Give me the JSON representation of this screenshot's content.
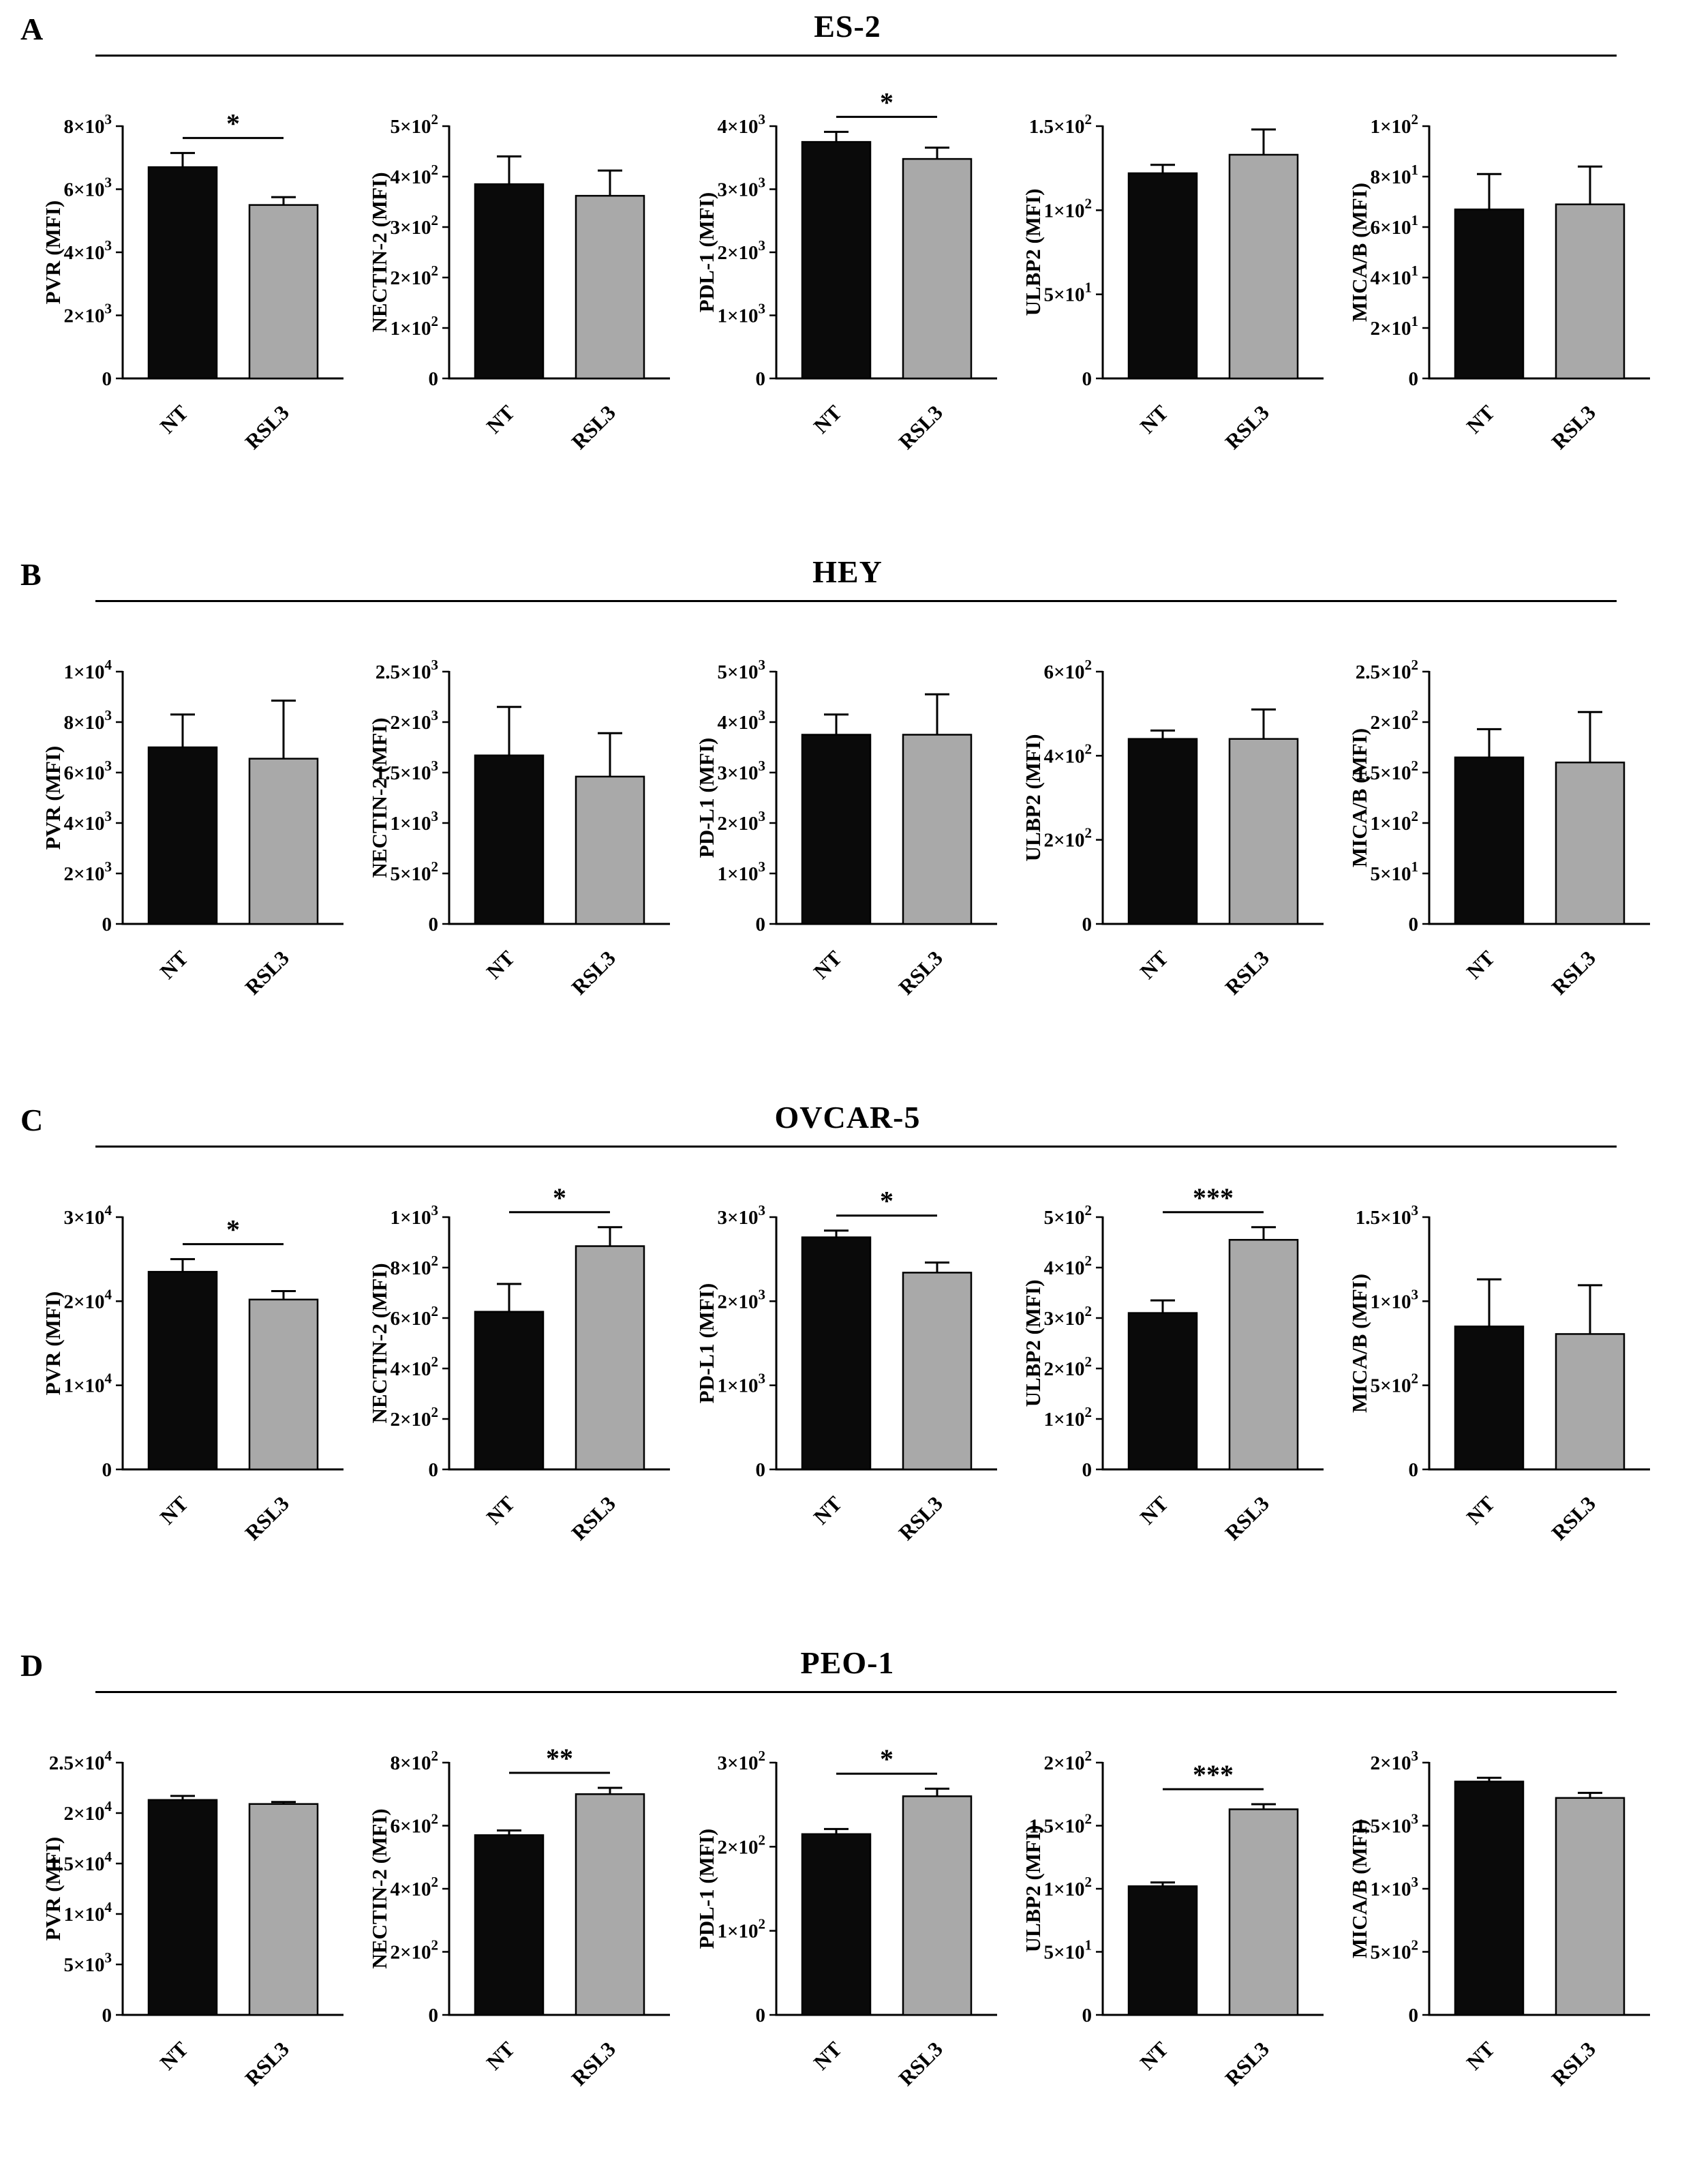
{
  "colors": {
    "nt_bar": "#0a0a0a",
    "rsl3_bar": "#a9a9a9",
    "axis": "#000000"
  },
  "chart_data": [
    {
      "panel": "A",
      "title": "ES-2",
      "charts": [
        {
          "type": "bar",
          "ylabel": "PVR (MFI)",
          "categories": [
            "NT",
            "RSL3"
          ],
          "values": [
            6700,
            5500
          ],
          "errors": [
            450,
            250
          ],
          "ymax": 8000,
          "yticks": [
            0,
            2000,
            4000,
            6000,
            8000
          ],
          "ytick_labels": [
            "0",
            "2×10^3",
            "4×10^3",
            "6×10^3",
            "8×10^3"
          ],
          "significance": "*"
        },
        {
          "type": "bar",
          "ylabel": "NECTIN-2 (MFI)",
          "categories": [
            "NT",
            "RSL3"
          ],
          "values": [
            385,
            362
          ],
          "errors": [
            55,
            50
          ],
          "ymax": 500,
          "yticks": [
            0,
            100,
            200,
            300,
            400,
            500
          ],
          "ytick_labels": [
            "0",
            "1×10^2",
            "2×10^2",
            "3×10^2",
            "4×10^2",
            "5×10^2"
          ],
          "significance": null
        },
        {
          "type": "bar",
          "ylabel": "PDL-1 (MFI)",
          "categories": [
            "NT",
            "RSL3"
          ],
          "values": [
            3750,
            3480
          ],
          "errors": [
            160,
            180
          ],
          "ymax": 4000,
          "yticks": [
            0,
            1000,
            2000,
            3000,
            4000
          ],
          "ytick_labels": [
            "0",
            "1×10^3",
            "2×10^3",
            "3×10^3",
            "4×10^3"
          ],
          "significance": "*"
        },
        {
          "type": "bar",
          "ylabel": "ULBP2 (MFI)",
          "categories": [
            "NT",
            "RSL3"
          ],
          "values": [
            122,
            133
          ],
          "errors": [
            5,
            15
          ],
          "ymax": 150,
          "yticks": [
            0,
            50,
            100,
            150
          ],
          "ytick_labels": [
            "0",
            "5×10^1",
            "1×10^2",
            "1.5×10^2"
          ],
          "significance": null
        },
        {
          "type": "bar",
          "ylabel": "MICA/B (MFI)",
          "categories": [
            "NT",
            "RSL3"
          ],
          "values": [
            67,
            69
          ],
          "errors": [
            14,
            15
          ],
          "ymax": 100,
          "yticks": [
            0,
            20,
            40,
            60,
            80,
            100
          ],
          "ytick_labels": [
            "0",
            "2×10^1",
            "4×10^1",
            "6×10^1",
            "8×10^1",
            "1×10^2"
          ],
          "significance": null
        }
      ]
    },
    {
      "panel": "B",
      "title": "HEY",
      "charts": [
        {
          "type": "bar",
          "ylabel": "PVR (MFI)",
          "categories": [
            "NT",
            "RSL3"
          ],
          "values": [
            7000,
            6550
          ],
          "errors": [
            1300,
            2300
          ],
          "ymax": 10000,
          "yticks": [
            0,
            2000,
            4000,
            6000,
            8000,
            10000
          ],
          "ytick_labels": [
            "0",
            "2×10^3",
            "4×10^3",
            "6×10^3",
            "8×10^3",
            "1×10^4"
          ],
          "significance": null
        },
        {
          "type": "bar",
          "ylabel": "NECTIN-2 (MFI)",
          "categories": [
            "NT",
            "RSL3"
          ],
          "values": [
            1670,
            1460
          ],
          "errors": [
            480,
            430
          ],
          "ymax": 2500,
          "yticks": [
            0,
            500,
            1000,
            1500,
            2000,
            2500
          ],
          "ytick_labels": [
            "0",
            "5×10^2",
            "1×10^3",
            "1.5×10^3",
            "2×10^3",
            "2.5×10^3"
          ],
          "significance": null
        },
        {
          "type": "bar",
          "ylabel": "PD-L1 (MFI)",
          "categories": [
            "NT",
            "RSL3"
          ],
          "values": [
            3750,
            3750
          ],
          "errors": [
            400,
            800
          ],
          "ymax": 5000,
          "yticks": [
            0,
            1000,
            2000,
            3000,
            4000,
            5000
          ],
          "ytick_labels": [
            "0",
            "1×10^3",
            "2×10^3",
            "3×10^3",
            "4×10^3",
            "5×10^3"
          ],
          "significance": null
        },
        {
          "type": "bar",
          "ylabel": "ULBP2 (MFI)",
          "categories": [
            "NT",
            "RSL3"
          ],
          "values": [
            440,
            440
          ],
          "errors": [
            20,
            70
          ],
          "ymax": 600,
          "yticks": [
            0,
            200,
            400,
            600
          ],
          "ytick_labels": [
            "0",
            "2×10^2",
            "4×10^2",
            "6×10^2"
          ],
          "significance": null
        },
        {
          "type": "bar",
          "ylabel": "MICA/B (MFI)",
          "categories": [
            "NT",
            "RSL3"
          ],
          "values": [
            165,
            160
          ],
          "errors": [
            28,
            50
          ],
          "ymax": 250,
          "yticks": [
            0,
            50,
            100,
            150,
            200,
            250
          ],
          "ytick_labels": [
            "0",
            "5×10^1",
            "1×10^2",
            "1.5×10^2",
            "2×10^2",
            "2.5×10^2"
          ],
          "significance": null
        }
      ]
    },
    {
      "panel": "C",
      "title": "OVCAR-5",
      "charts": [
        {
          "type": "bar",
          "ylabel": "PVR (MFI)",
          "categories": [
            "NT",
            "RSL3"
          ],
          "values": [
            23500,
            20200
          ],
          "errors": [
            1500,
            1000
          ],
          "ymax": 30000,
          "yticks": [
            0,
            10000,
            20000,
            30000
          ],
          "ytick_labels": [
            "0",
            "1×10^4",
            "2×10^4",
            "3×10^4"
          ],
          "significance": "*"
        },
        {
          "type": "bar",
          "ylabel": "NECTIN-2 (MFI)",
          "categories": [
            "NT",
            "RSL3"
          ],
          "values": [
            625,
            885
          ],
          "errors": [
            110,
            75
          ],
          "ymax": 1000,
          "yticks": [
            0,
            200,
            400,
            600,
            800,
            1000
          ],
          "ytick_labels": [
            "0",
            "2×10^2",
            "4×10^2",
            "6×10^2",
            "8×10^2",
            "1×10^3"
          ],
          "significance": "*"
        },
        {
          "type": "bar",
          "ylabel": "PD-L1 (MFI)",
          "categories": [
            "NT",
            "RSL3"
          ],
          "values": [
            2760,
            2340
          ],
          "errors": [
            80,
            120
          ],
          "ymax": 3000,
          "yticks": [
            0,
            1000,
            2000,
            3000
          ],
          "ytick_labels": [
            "0",
            "1×10^3",
            "2×10^3",
            "3×10^3"
          ],
          "significance": "*"
        },
        {
          "type": "bar",
          "ylabel": "ULBP2 (MFI)",
          "categories": [
            "NT",
            "RSL3"
          ],
          "values": [
            310,
            455
          ],
          "errors": [
            25,
            25
          ],
          "ymax": 500,
          "yticks": [
            0,
            100,
            200,
            300,
            400,
            500
          ],
          "ytick_labels": [
            "0",
            "1×10^2",
            "2×10^2",
            "3×10^2",
            "4×10^2",
            "5×10^2"
          ],
          "significance": "***"
        },
        {
          "type": "bar",
          "ylabel": "MICA/B (MFI)",
          "categories": [
            "NT",
            "RSL3"
          ],
          "values": [
            850,
            805
          ],
          "errors": [
            280,
            290
          ],
          "ymax": 1500,
          "yticks": [
            0,
            500,
            1000,
            1500
          ],
          "ytick_labels": [
            "0",
            "5×10^2",
            "1×10^3",
            "1.5×10^3"
          ],
          "significance": null
        }
      ]
    },
    {
      "panel": "D",
      "title": "PEO-1",
      "charts": [
        {
          "type": "bar",
          "ylabel": "PVR (MFI)",
          "categories": [
            "NT",
            "RSL3"
          ],
          "values": [
            21300,
            20900
          ],
          "errors": [
            400,
            200
          ],
          "ymax": 25000,
          "yticks": [
            0,
            5000,
            10000,
            15000,
            20000,
            25000
          ],
          "ytick_labels": [
            "0",
            "5×10^3",
            "1×10^4",
            "1.5×10^4",
            "2×10^4",
            "2.5×10^4"
          ],
          "significance": null
        },
        {
          "type": "bar",
          "ylabel": "NECTIN-2 (MFI)",
          "categories": [
            "NT",
            "RSL3"
          ],
          "values": [
            570,
            700
          ],
          "errors": [
            15,
            20
          ],
          "ymax": 800,
          "yticks": [
            0,
            200,
            400,
            600,
            800
          ],
          "ytick_labels": [
            "0",
            "2×10^2",
            "4×10^2",
            "6×10^2",
            "8×10^2"
          ],
          "significance": "**"
        },
        {
          "type": "bar",
          "ylabel": "PDL-1 (MFI)",
          "categories": [
            "NT",
            "RSL3"
          ],
          "values": [
            215,
            260
          ],
          "errors": [
            6,
            9
          ],
          "ymax": 300,
          "yticks": [
            0,
            100,
            200,
            300
          ],
          "ytick_labels": [
            "0",
            "1×10^2",
            "2×10^2",
            "3×10^2"
          ],
          "significance": "*"
        },
        {
          "type": "bar",
          "ylabel": "ULBP2 (MFI)",
          "categories": [
            "NT",
            "RSL3"
          ],
          "values": [
            102,
            163
          ],
          "errors": [
            3,
            4
          ],
          "ymax": 200,
          "yticks": [
            0,
            50,
            100,
            150,
            200
          ],
          "ytick_labels": [
            "0",
            "5×10^1",
            "1×10^2",
            "1.5×10^2",
            "2×10^2"
          ],
          "significance": "***"
        },
        {
          "type": "bar",
          "ylabel": "MICA/B (MFI)",
          "categories": [
            "NT",
            "RSL3"
          ],
          "values": [
            1850,
            1720
          ],
          "errors": [
            30,
            40
          ],
          "ymax": 2000,
          "yticks": [
            0,
            500,
            1000,
            1500,
            2000
          ],
          "ytick_labels": [
            "0",
            "5×10^2",
            "1×10^3",
            "1.5×10^3",
            "2×10^3"
          ],
          "significance": null
        }
      ]
    }
  ]
}
